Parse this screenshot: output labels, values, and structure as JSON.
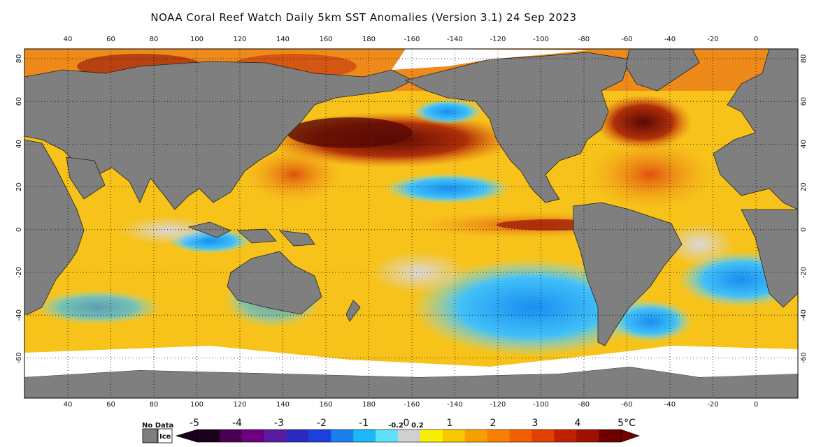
{
  "title": "NOAA Coral Reef Watch Daily 5km SST Anomalies (Version 3.1)  24 Sep 2023",
  "map": {
    "lon_labels": [
      "40",
      "60",
      "80",
      "100",
      "120",
      "140",
      "160",
      "180",
      "-160",
      "-140",
      "-120",
      "-100",
      "-80",
      "-60",
      "-40",
      "-20",
      "0"
    ],
    "lat_labels": [
      "80",
      "60",
      "40",
      "20",
      "0",
      "-20",
      "-40",
      "-60"
    ],
    "colors": {
      "land": "#7f7f7f",
      "ice": "#ffffff",
      "ocean_warm": "#f7c21a",
      "ocean_hot": "#e8701a",
      "ocean_very_hot": "#8a1a08",
      "ocean_cool": "#2ab0f0",
      "ocean_neutral": "#d9d9d9"
    }
  },
  "legend": {
    "no_data_label": "No Data",
    "ice_label": "Ice",
    "tick_labels": [
      "-5",
      "-4",
      "-3",
      "-2",
      "-1",
      "-0.2",
      "0",
      "0.2",
      "1",
      "2",
      "3",
      "4",
      "5°C"
    ],
    "colors": [
      "#1a001a",
      "#4a0050",
      "#6e0080",
      "#5a1aa0",
      "#2a2ac0",
      "#1a40e0",
      "#1a80f0",
      "#1ab8f8",
      "#60e0f8",
      "#d0d0d0",
      "#f8f000",
      "#f8c800",
      "#f8a000",
      "#f88000",
      "#f06000",
      "#e04000",
      "#c02000",
      "#a01000",
      "#700000"
    ]
  }
}
